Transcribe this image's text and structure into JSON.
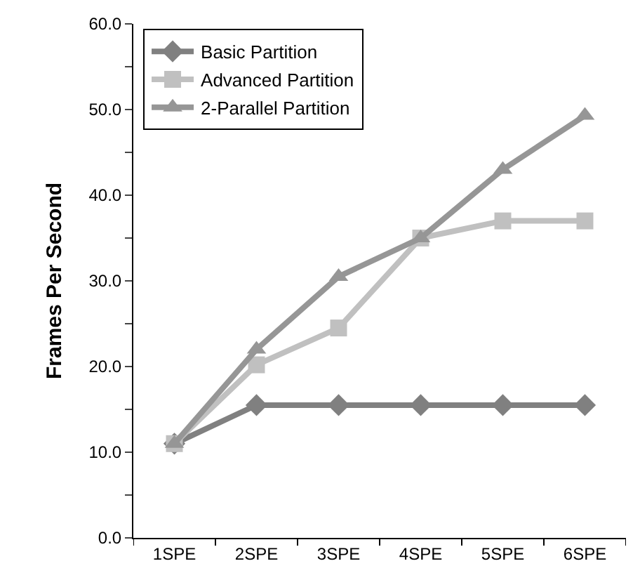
{
  "chart_data": {
    "type": "line",
    "ylabel": "Frames Per Second",
    "categories": [
      "1SPE",
      "2SPE",
      "3SPE",
      "4SPE",
      "5SPE",
      "6SPE"
    ],
    "series": [
      {
        "name": "Basic Partition",
        "color": "#808080",
        "marker": "diamond",
        "values": [
          11.0,
          15.5,
          15.5,
          15.5,
          15.5,
          15.5
        ]
      },
      {
        "name": "Advanced Partition",
        "color": "#c0c0c0",
        "marker": "square",
        "values": [
          11.0,
          20.2,
          24.5,
          35.0,
          37.0,
          37.0
        ]
      },
      {
        "name": "2-Parallel Partition",
        "color": "#969696",
        "marker": "triangle",
        "values": [
          11.0,
          22.0,
          30.5,
          35.0,
          43.0,
          49.3
        ]
      }
    ],
    "ylim": [
      0,
      60
    ],
    "yticks": [
      {
        "value": 0,
        "label": "0.0"
      },
      {
        "value": 5,
        "label": null
      },
      {
        "value": 10,
        "label": "10.0"
      },
      {
        "value": 15,
        "label": null
      },
      {
        "value": 20,
        "label": "20.0"
      },
      {
        "value": 25,
        "label": null
      },
      {
        "value": 30,
        "label": "30.0"
      },
      {
        "value": 35,
        "label": null
      },
      {
        "value": 40,
        "label": "40.0"
      },
      {
        "value": 45,
        "label": null
      },
      {
        "value": 50,
        "label": "50.0"
      },
      {
        "value": 55,
        "label": null
      },
      {
        "value": 60,
        "label": "60.0"
      }
    ],
    "legend": "top left",
    "line_style": "solid"
  }
}
